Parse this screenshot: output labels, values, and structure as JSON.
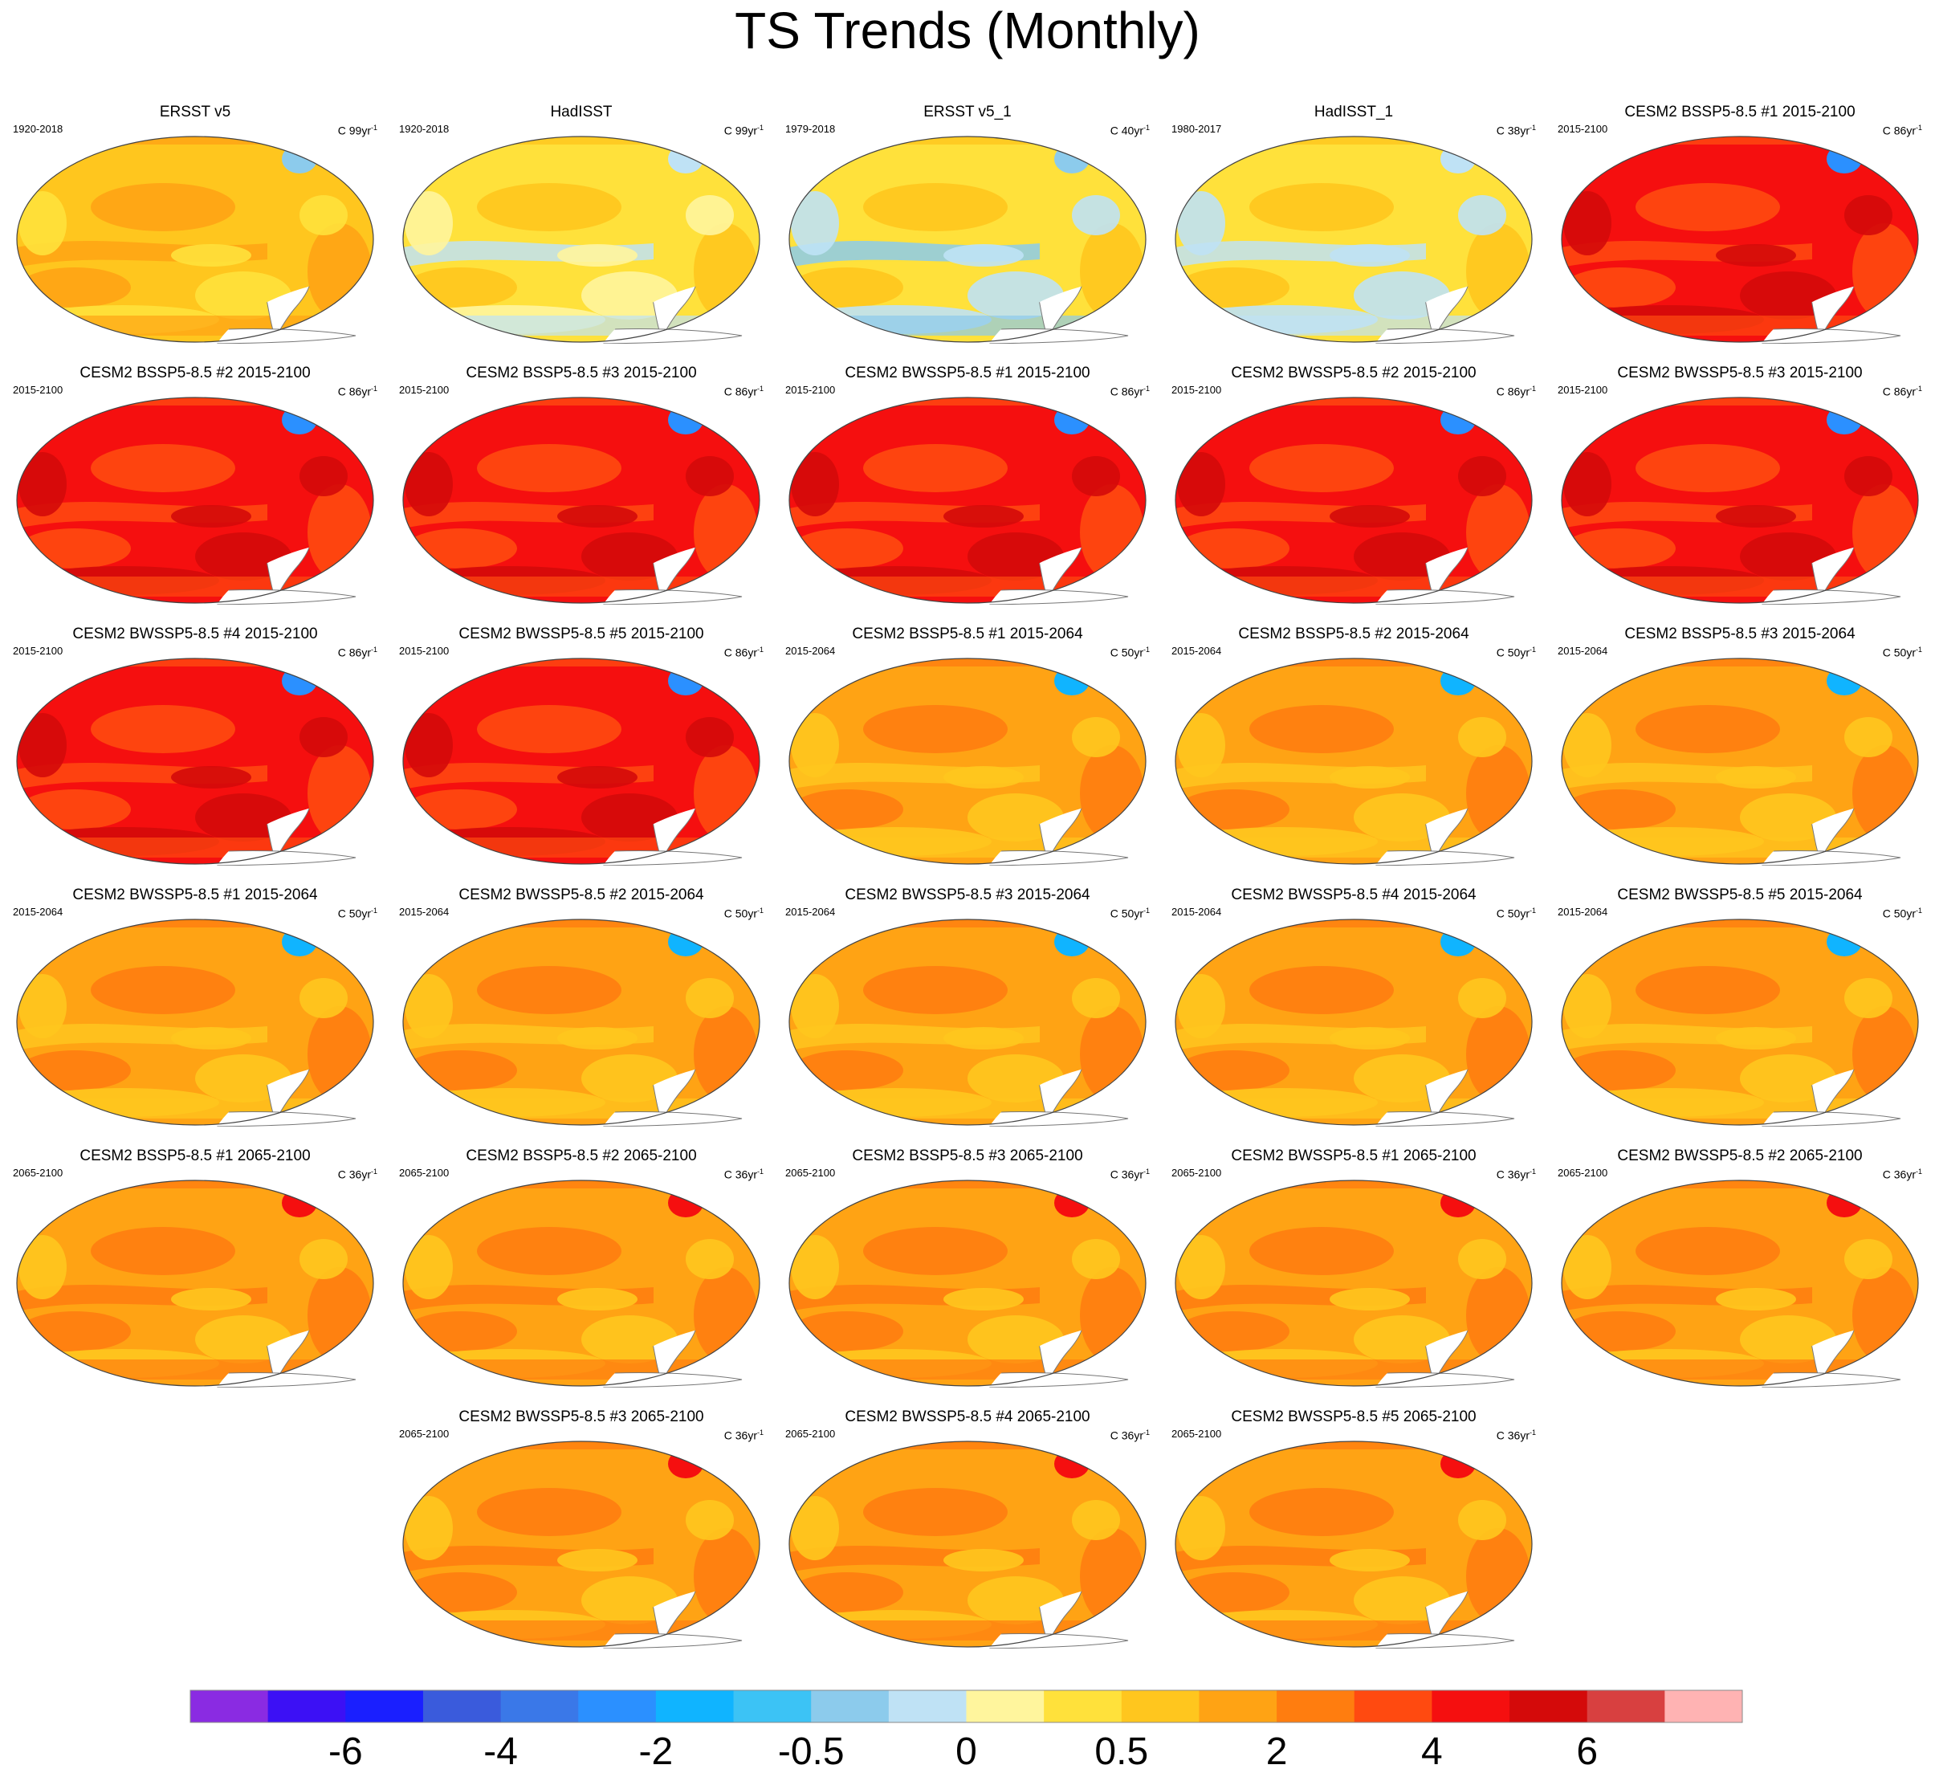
{
  "title": "TS Trends (Monthly)",
  "colors": {
    "land": "#ffffff",
    "coast": "#777777",
    "outline": "#444444"
  },
  "panels": [
    {
      "title": "ERSST v5",
      "years": "1920-2018",
      "unit_value": "C 99yr",
      "unit_exp": "-1",
      "scheme": "obs_warm"
    },
    {
      "title": "HadISST",
      "years": "1920-2018",
      "unit_value": "C 99yr",
      "unit_exp": "-1",
      "scheme": "obs_patchy"
    },
    {
      "title": "ERSST v5_1",
      "years": "1979-2018",
      "unit_value": "C 40yr",
      "unit_exp": "-1",
      "scheme": "obs_cool"
    },
    {
      "title": "HadISST_1",
      "years": "1980-2017",
      "unit_value": "C 38yr",
      "unit_exp": "-1",
      "scheme": "obs_cool2"
    },
    {
      "title": "CESM2 BSSP5-8.5 #1 2015-2100",
      "years": "2015-2100",
      "unit_value": "C 86yr",
      "unit_exp": "-1",
      "scheme": "hot"
    },
    {
      "title": "CESM2 BSSP5-8.5 #2 2015-2100",
      "years": "2015-2100",
      "unit_value": "C 86yr",
      "unit_exp": "-1",
      "scheme": "hot"
    },
    {
      "title": "CESM2 BSSP5-8.5 #3 2015-2100",
      "years": "2015-2100",
      "unit_value": "C 86yr",
      "unit_exp": "-1",
      "scheme": "hot"
    },
    {
      "title": "CESM2 BWSSP5-8.5 #1 2015-2100",
      "years": "2015-2100",
      "unit_value": "C 86yr",
      "unit_exp": "-1",
      "scheme": "hot"
    },
    {
      "title": "CESM2 BWSSP5-8.5 #2 2015-2100",
      "years": "2015-2100",
      "unit_value": "C 86yr",
      "unit_exp": "-1",
      "scheme": "hot"
    },
    {
      "title": "CESM2 BWSSP5-8.5 #3 2015-2100",
      "years": "2015-2100",
      "unit_value": "C 86yr",
      "unit_exp": "-1",
      "scheme": "hot"
    },
    {
      "title": "CESM2 BWSSP5-8.5 #4 2015-2100",
      "years": "2015-2100",
      "unit_value": "C 86yr",
      "unit_exp": "-1",
      "scheme": "hot"
    },
    {
      "title": "CESM2 BWSSP5-8.5 #5 2015-2100",
      "years": "2015-2100",
      "unit_value": "C 86yr",
      "unit_exp": "-1",
      "scheme": "hot"
    },
    {
      "title": "CESM2 BSSP5-8.5 #1 2015-2064",
      "years": "2015-2064",
      "unit_value": "C 50yr",
      "unit_exp": "-1",
      "scheme": "mid"
    },
    {
      "title": "CESM2 BSSP5-8.5 #2 2015-2064",
      "years": "2015-2064",
      "unit_value": "C 50yr",
      "unit_exp": "-1",
      "scheme": "mid"
    },
    {
      "title": "CESM2 BSSP5-8.5 #3 2015-2064",
      "years": "2015-2064",
      "unit_value": "C 50yr",
      "unit_exp": "-1",
      "scheme": "mid"
    },
    {
      "title": "CESM2 BWSSP5-8.5 #1 2015-2064",
      "years": "2015-2064",
      "unit_value": "C 50yr",
      "unit_exp": "-1",
      "scheme": "mid"
    },
    {
      "title": "CESM2 BWSSP5-8.5 #2 2015-2064",
      "years": "2015-2064",
      "unit_value": "C 50yr",
      "unit_exp": "-1",
      "scheme": "mid"
    },
    {
      "title": "CESM2 BWSSP5-8.5 #3 2015-2064",
      "years": "2015-2064",
      "unit_value": "C 50yr",
      "unit_exp": "-1",
      "scheme": "mid"
    },
    {
      "title": "CESM2 BWSSP5-8.5 #4 2015-2064",
      "years": "2015-2064",
      "unit_value": "C 50yr",
      "unit_exp": "-1",
      "scheme": "mid"
    },
    {
      "title": "CESM2 BWSSP5-8.5 #5 2015-2064",
      "years": "2015-2064",
      "unit_value": "C 50yr",
      "unit_exp": "-1",
      "scheme": "mid"
    },
    {
      "title": "CESM2 BSSP5-8.5 #1 2065-2100",
      "years": "2065-2100",
      "unit_value": "C 36yr",
      "unit_exp": "-1",
      "scheme": "late"
    },
    {
      "title": "CESM2 BSSP5-8.5 #2 2065-2100",
      "years": "2065-2100",
      "unit_value": "C 36yr",
      "unit_exp": "-1",
      "scheme": "late"
    },
    {
      "title": "CESM2 BSSP5-8.5 #3 2065-2100",
      "years": "2065-2100",
      "unit_value": "C 36yr",
      "unit_exp": "-1",
      "scheme": "late"
    },
    {
      "title": "CESM2 BWSSP5-8.5 #1 2065-2100",
      "years": "2065-2100",
      "unit_value": "C 36yr",
      "unit_exp": "-1",
      "scheme": "late"
    },
    {
      "title": "CESM2 BWSSP5-8.5 #2 2065-2100",
      "years": "2065-2100",
      "unit_value": "C 36yr",
      "unit_exp": "-1",
      "scheme": "late"
    },
    {
      "title": "CESM2 BWSSP5-8.5 #3 2065-2100",
      "years": "2065-2100",
      "unit_value": "C 36yr",
      "unit_exp": "-1",
      "scheme": "late"
    },
    {
      "title": "CESM2 BWSSP5-8.5 #4 2065-2100",
      "years": "2065-2100",
      "unit_value": "C 36yr",
      "unit_exp": "-1",
      "scheme": "late"
    },
    {
      "title": "CESM2 BWSSP5-8.5 #5 2065-2100",
      "years": "2065-2100",
      "unit_value": "C 36yr",
      "unit_exp": "-1",
      "scheme": "late"
    }
  ],
  "colorbar": {
    "colors": [
      "#8a2be2",
      "#3c10f5",
      "#1a1fff",
      "#3a5bdc",
      "#3a78e8",
      "#2b90ff",
      "#10b4ff",
      "#3cc3f5",
      "#8ccbec",
      "#bfe2f5",
      "#fff59d",
      "#ffe13b",
      "#ffc61e",
      "#ffa314",
      "#ff7d0f",
      "#ff4a10",
      "#f50f0f",
      "#d40a0a",
      "#d84040",
      "#ffb3b3"
    ],
    "labels": [
      "-6",
      "-4",
      "-2",
      "-0.5",
      "0",
      "0.5",
      "2",
      "4",
      "6"
    ],
    "label_after_box": [
      1,
      3,
      5,
      7,
      9,
      11,
      13,
      15,
      17
    ]
  },
  "schemes": {
    "obs_warm": {
      "base": "#ffc61e",
      "patch1": "#ffa314",
      "patch2": "#ffe13b",
      "blob": "#8ccbec",
      "band": "#ffa314"
    },
    "obs_patchy": {
      "base": "#ffe13b",
      "patch1": "#ffc61e",
      "patch2": "#fff59d",
      "blob": "#bfe2f5",
      "band": "#bfe2f5"
    },
    "obs_cool": {
      "base": "#ffe13b",
      "patch1": "#ffc61e",
      "patch2": "#bfe2f5",
      "blob": "#8ccbec",
      "band": "#8ccbec"
    },
    "obs_cool2": {
      "base": "#ffe13b",
      "patch1": "#ffc61e",
      "patch2": "#bfe2f5",
      "blob": "#bfe2f5",
      "band": "#bfe2f5"
    },
    "hot": {
      "base": "#f50f0f",
      "patch1": "#ff4a10",
      "patch2": "#d40a0a",
      "blob": "#2b90ff",
      "band": "#ff4a10"
    },
    "mid": {
      "base": "#ffa314",
      "patch1": "#ff7d0f",
      "patch2": "#ffc61e",
      "blob": "#10b4ff",
      "band": "#ffc61e"
    },
    "late": {
      "base": "#ffa314",
      "patch1": "#ff7d0f",
      "patch2": "#ffc61e",
      "blob": "#f50f0f",
      "band": "#ff7d0f"
    }
  }
}
